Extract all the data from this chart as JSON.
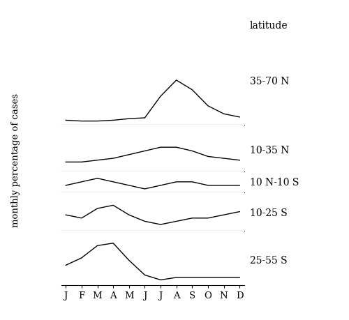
{
  "months": [
    "J",
    "F",
    "M",
    "A",
    "M",
    "J",
    "J",
    "A",
    "S",
    "O",
    "N",
    "D"
  ],
  "latitude_labels": [
    "35-70 N",
    "10-35 N",
    "10 N-10 S",
    "10-25 S",
    "25-55 S"
  ],
  "series": {
    "35-70 N": [
      3,
      2.5,
      2.5,
      3,
      4,
      4.5,
      18,
      28,
      22,
      12,
      7,
      5
    ],
    "10-35 N": [
      5,
      5,
      6,
      7,
      9,
      11,
      13,
      13,
      11,
      8,
      7,
      6
    ],
    "10 N-10 S": [
      9,
      10,
      11,
      10,
      9,
      8,
      9,
      10,
      10,
      9,
      9,
      9
    ],
    "10-25 S": [
      9,
      8,
      11,
      12,
      9,
      7,
      6,
      7,
      8,
      8,
      9,
      10
    ],
    "25-55 S": [
      8,
      11,
      16,
      17,
      10,
      4,
      2,
      3,
      3,
      3,
      3,
      3
    ]
  },
  "ylims": {
    "35-70 N": [
      0,
      60
    ],
    "10-35 N": [
      0,
      25
    ],
    "10 N-10 S": [
      7,
      13
    ],
    "10-25 S": [
      4,
      16
    ],
    "25-55 S": [
      0,
      22
    ]
  },
  "height_ratios": [
    2.5,
    1.2,
    0.55,
    1.0,
    1.4
  ],
  "ylabel": "monthly percentage of cases",
  "right_label": "latitude",
  "line_color": "#000000",
  "background_color": "#ffffff",
  "font_size": 9.5,
  "label_font_size": 10
}
